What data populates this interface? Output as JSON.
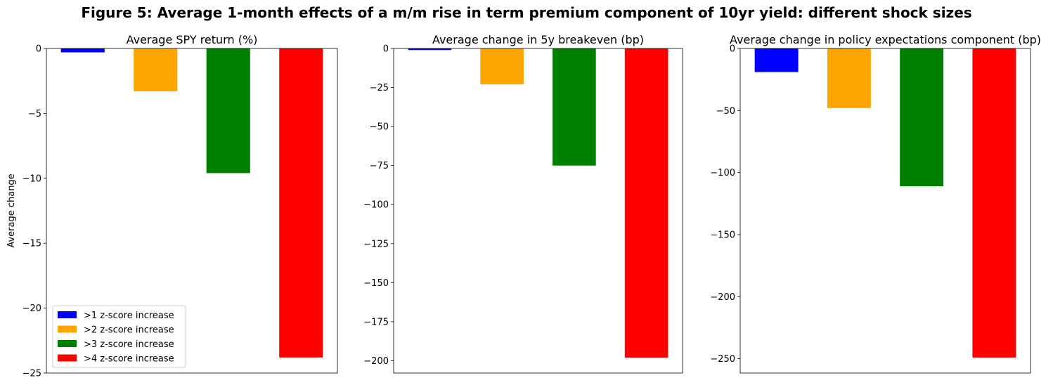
{
  "figure_title": "Figure 5: Average 1-month effects of a m/m rise in term premium component of 10yr yield: different shock sizes",
  "colors": {
    "s1": "#0000ff",
    "s2": "#ffa500",
    "s3": "#008000",
    "s4": "#ff0000"
  },
  "legend_labels": [
    ">1 z-score increase",
    ">2 z-score increase",
    ">3 z-score increase",
    ">4 z-score increase"
  ],
  "chart_data": [
    {
      "type": "bar",
      "title": "Average SPY return (%)",
      "ylabel": "Average change",
      "xlabel": "",
      "categories": [
        ">1 z-score increase",
        ">2 z-score increase",
        ">3 z-score increase",
        ">4 z-score increase"
      ],
      "values": [
        -0.3,
        -3.3,
        -9.6,
        -23.8
      ],
      "ylim": [
        -25,
        0
      ],
      "yticks": [
        0,
        -5,
        -10,
        -15,
        -20,
        -25
      ],
      "legend": "lower-left",
      "grid": false
    },
    {
      "type": "bar",
      "title": "Average change in 5y breakeven (bp)",
      "ylabel": "",
      "xlabel": "",
      "categories": [
        ">1 z-score increase",
        ">2 z-score increase",
        ">3 z-score increase",
        ">4 z-score increase"
      ],
      "values": [
        -1,
        -23,
        -75,
        -198
      ],
      "ylim": [
        -207.9,
        0
      ],
      "yticks": [
        0,
        -25,
        -50,
        -75,
        -100,
        -125,
        -150,
        -175,
        -200
      ],
      "grid": false
    },
    {
      "type": "bar",
      "title": "Average change in policy expectations component (bp)",
      "ylabel": "",
      "xlabel": "",
      "categories": [
        ">1 z-score increase",
        ">2 z-score increase",
        ">3 z-score increase",
        ">4 z-score increase"
      ],
      "values": [
        -19,
        -48,
        -111,
        -249
      ],
      "ylim": [
        -261.5,
        0
      ],
      "yticks": [
        0,
        -50,
        -100,
        -150,
        -200,
        -250
      ],
      "grid": false
    }
  ]
}
